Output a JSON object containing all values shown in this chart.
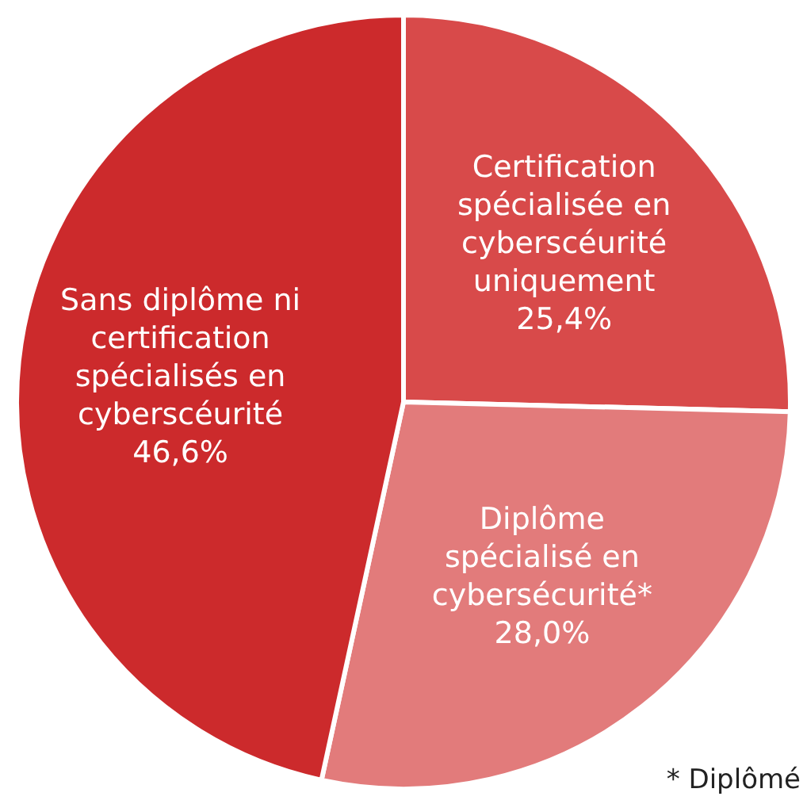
{
  "chart_data": {
    "type": "pie",
    "categories": [
      "Certification spécialisée en cyberscéurité uniquement",
      "Diplôme spécialisé en cybersécurité*",
      "Sans diplôme ni certification spécialisés en cyberscéurité"
    ],
    "values": [
      25.4,
      28.0,
      46.6
    ],
    "colors": [
      "#d84a4a",
      "#e27b7b",
      "#cc2a2c"
    ],
    "value_labels": [
      "25,4%",
      "28,0%",
      "46,6%"
    ],
    "legend": false,
    "annotations": [
      "* Diplômé"
    ]
  }
}
